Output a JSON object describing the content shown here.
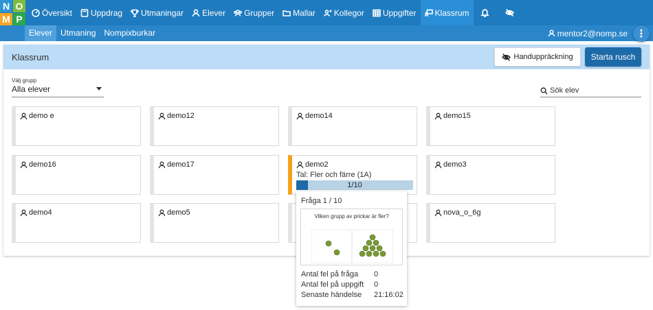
{
  "logo": {
    "letters": [
      "N",
      "O",
      "M",
      "P"
    ],
    "colors": [
      "#2b95d6",
      "#7ebd3f",
      "#f5a623",
      "#2aa84a"
    ]
  },
  "nav": [
    {
      "label": "Översikt",
      "icon": "overview-icon",
      "active": false
    },
    {
      "label": "Uppdrag",
      "icon": "book-icon",
      "active": false
    },
    {
      "label": "Utmaningar",
      "icon": "trophy-icon",
      "active": false
    },
    {
      "label": "Elever",
      "icon": "user-icon",
      "active": false
    },
    {
      "label": "Grupper",
      "icon": "group-icon",
      "active": false
    },
    {
      "label": "Mallar",
      "icon": "folder-icon",
      "active": false
    },
    {
      "label": "Kollegor",
      "icon": "colleague-icon",
      "active": false
    },
    {
      "label": "Uppgifter",
      "icon": "grid-icon",
      "active": false
    },
    {
      "label": "Klassrum",
      "icon": "classroom-icon",
      "active": true
    }
  ],
  "subnav": [
    {
      "label": "Elever",
      "active": true
    },
    {
      "label": "Utmaning",
      "active": false
    },
    {
      "label": "Nompixburkar",
      "active": false
    }
  ],
  "user": {
    "email": "mentor2@nomp.se"
  },
  "panel": {
    "title": "Klassrum",
    "hand_button": "Handuppräckning",
    "start_button": "Starta rusch",
    "group_label": "Välj grupp",
    "group_value": "Alla elever",
    "search_placeholder": "Sök elev"
  },
  "students": [
    {
      "name": "demo e"
    },
    {
      "name": "demo12"
    },
    {
      "name": "demo14"
    },
    {
      "name": "demo15"
    },
    {
      "name": "demo16"
    },
    {
      "name": "demo17"
    },
    {
      "name": "demo2",
      "active": true,
      "task": "Tal: Fler och färre (1A)",
      "progress_text": "1/10",
      "progress": 0.1
    },
    {
      "name": "demo3"
    },
    {
      "name": "demo4"
    },
    {
      "name": "demo5"
    },
    {
      "name": ""
    },
    {
      "name": "nova_o_6g"
    }
  ],
  "popover": {
    "question_label": "Fråga 1 / 10",
    "question_text": "Vilken grupp av prickar är fler?",
    "stats": [
      {
        "label": "Antal fel på fråga",
        "value": "0"
      },
      {
        "label": "Antal fel på uppgift",
        "value": "0"
      },
      {
        "label": "Senaste händelse",
        "value": "21:16:02"
      }
    ],
    "dot_color": "#7a9a35"
  }
}
